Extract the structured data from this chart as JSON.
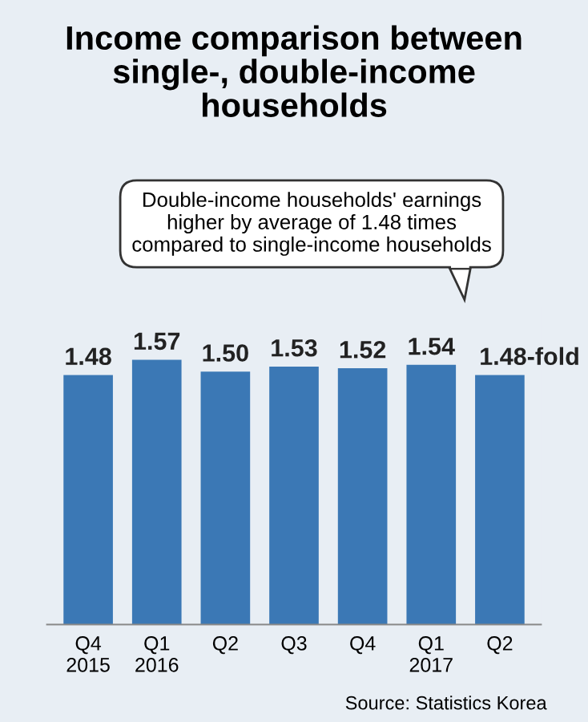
{
  "chart_data": {
    "type": "bar",
    "title": "Income comparison between\nsingle-, double-income\nhouseholds",
    "categories": [
      "Q4\n2015",
      "Q1\n2016",
      "Q2",
      "Q3",
      "Q4",
      "Q1\n2017",
      "Q2"
    ],
    "values": [
      1.48,
      1.57,
      1.5,
      1.53,
      1.52,
      1.54,
      1.48
    ],
    "value_labels": [
      "1.48",
      "1.57",
      "1.50",
      "1.53",
      "1.52",
      "1.54",
      "1.48-fold"
    ],
    "color": "#3b78b5",
    "grid": false,
    "legend": false,
    "annotations": [
      "Double-income households' earnings\nhigher by average of 1.48 times\ncompared to single-income households",
      "Source: Statistics Korea"
    ]
  }
}
